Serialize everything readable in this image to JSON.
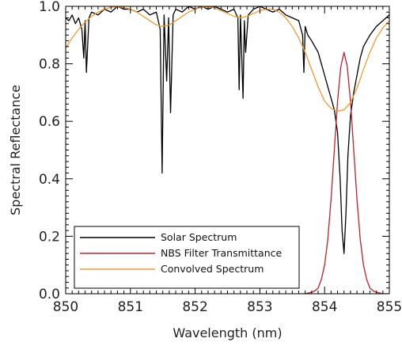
{
  "chart_data": {
    "type": "line",
    "xlabel": "Wavelength (nm)",
    "ylabel": "Spectral Reflectance",
    "xlim": [
      850,
      855
    ],
    "ylim": [
      0.0,
      1.0
    ],
    "x_ticks": [
      850,
      851,
      852,
      853,
      854,
      855
    ],
    "x_tick_labels": [
      "850",
      "851",
      "852",
      "853",
      "854",
      "855"
    ],
    "y_ticks": [
      0.0,
      0.2,
      0.4,
      0.6,
      0.8,
      1.0
    ],
    "y_tick_labels": [
      "0.0",
      "0.2",
      "0.4",
      "0.6",
      "0.8",
      "1.0"
    ],
    "grid": false,
    "legend_position": "bottom-left",
    "series": [
      {
        "name": "Solar Spectrum",
        "color": "#000000",
        "x": [
          850.0,
          850.05,
          850.1,
          850.15,
          850.2,
          850.25,
          850.28,
          850.3,
          850.32,
          850.36,
          850.4,
          850.5,
          850.6,
          850.7,
          850.8,
          850.9,
          851.0,
          851.1,
          851.2,
          851.3,
          851.4,
          851.46,
          851.49,
          851.52,
          851.56,
          851.59,
          851.62,
          851.66,
          851.7,
          851.8,
          851.9,
          852.0,
          852.1,
          852.2,
          852.3,
          852.4,
          852.5,
          852.6,
          852.66,
          852.68,
          852.7,
          852.74,
          852.76,
          852.78,
          852.82,
          852.9,
          853.0,
          853.1,
          853.2,
          853.3,
          853.4,
          853.5,
          853.6,
          853.66,
          853.68,
          853.7,
          853.74,
          853.8,
          853.9,
          853.95,
          854.0,
          854.05,
          854.1,
          854.15,
          854.2,
          854.24,
          854.27,
          854.3,
          854.33,
          854.36,
          854.4,
          854.45,
          854.5,
          854.55,
          854.6,
          854.65,
          854.7,
          854.8,
          854.9,
          855.0
        ],
        "y": [
          0.96,
          0.95,
          0.97,
          0.94,
          0.96,
          0.92,
          0.82,
          0.95,
          0.77,
          0.96,
          0.98,
          0.97,
          0.99,
          0.98,
          1.0,
          0.99,
          0.99,
          0.98,
          0.99,
          0.97,
          0.98,
          0.92,
          0.42,
          0.97,
          0.74,
          0.96,
          0.63,
          0.97,
          0.99,
          0.98,
          1.0,
          0.99,
          1.0,
          0.99,
          1.0,
          0.99,
          0.98,
          0.99,
          0.96,
          0.71,
          0.97,
          0.68,
          0.95,
          0.84,
          0.97,
          0.99,
          1.0,
          0.99,
          0.98,
          0.99,
          0.97,
          0.96,
          0.95,
          0.9,
          0.77,
          0.93,
          0.9,
          0.88,
          0.84,
          0.8,
          0.76,
          0.72,
          0.68,
          0.64,
          0.56,
          0.4,
          0.22,
          0.14,
          0.28,
          0.48,
          0.62,
          0.7,
          0.76,
          0.82,
          0.86,
          0.88,
          0.9,
          0.93,
          0.95,
          0.97
        ]
      },
      {
        "name": "NBS Filter Transmittance",
        "color": "#c0202a",
        "x": [
          853.6,
          853.7,
          853.8,
          853.85,
          853.9,
          853.95,
          854.0,
          854.05,
          854.1,
          854.15,
          854.2,
          854.25,
          854.3,
          854.35,
          854.4,
          854.45,
          854.5,
          854.55,
          854.6,
          854.65,
          854.7,
          854.75,
          854.8,
          854.9,
          855.0
        ],
        "y": [
          0.0,
          0.0,
          0.005,
          0.01,
          0.02,
          0.05,
          0.1,
          0.19,
          0.33,
          0.5,
          0.67,
          0.79,
          0.84,
          0.79,
          0.67,
          0.5,
          0.33,
          0.19,
          0.1,
          0.05,
          0.02,
          0.01,
          0.005,
          0.0,
          0.0
        ]
      },
      {
        "name": "Convolved Spectrum",
        "color": "#f29a2e",
        "x": [
          850.0,
          850.1,
          850.2,
          850.3,
          850.4,
          850.5,
          850.6,
          850.7,
          850.8,
          850.9,
          851.0,
          851.1,
          851.2,
          851.3,
          851.4,
          851.5,
          851.6,
          851.7,
          851.8,
          851.9,
          852.0,
          852.1,
          852.2,
          852.3,
          852.4,
          852.5,
          852.6,
          852.7,
          852.8,
          852.9,
          853.0,
          853.1,
          853.2,
          853.3,
          853.4,
          853.5,
          853.6,
          853.7,
          853.8,
          853.9,
          854.0,
          854.1,
          854.2,
          854.3,
          854.4,
          854.5,
          854.6,
          854.7,
          854.8,
          854.9,
          855.0
        ],
        "y": [
          0.855,
          0.89,
          0.92,
          0.945,
          0.965,
          0.98,
          0.99,
          0.997,
          0.999,
          0.996,
          0.99,
          0.98,
          0.965,
          0.95,
          0.935,
          0.93,
          0.935,
          0.95,
          0.965,
          0.98,
          0.99,
          0.997,
          0.999,
          0.995,
          0.985,
          0.975,
          0.965,
          0.96,
          0.965,
          0.975,
          0.985,
          0.99,
          0.99,
          0.98,
          0.96,
          0.93,
          0.89,
          0.84,
          0.78,
          0.72,
          0.67,
          0.645,
          0.635,
          0.64,
          0.665,
          0.715,
          0.78,
          0.84,
          0.89,
          0.925,
          0.95
        ]
      }
    ]
  }
}
